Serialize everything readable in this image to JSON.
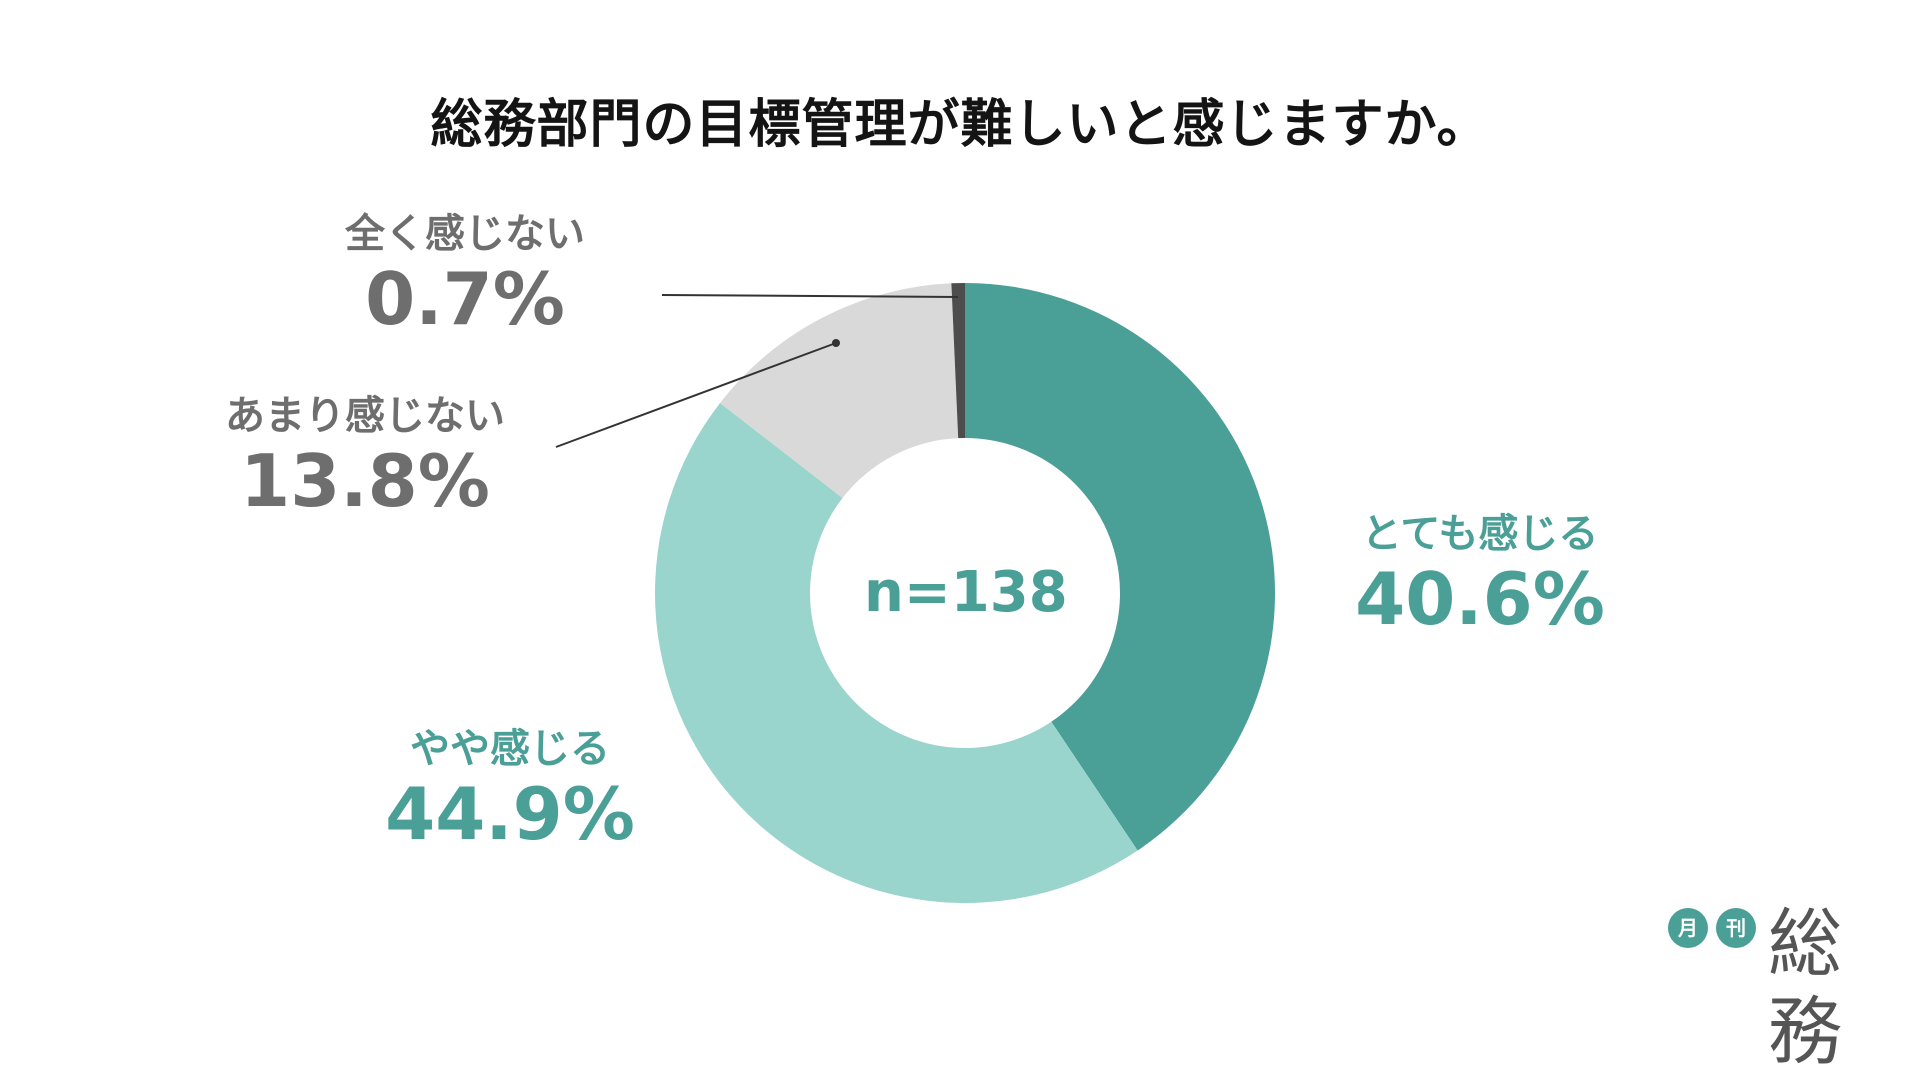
{
  "chart_data": {
    "type": "pie",
    "title": "総務部門の目標管理が難しいと感じますか。",
    "center_label": "n=138",
    "categories": [
      "とても感じる",
      "やや感じる",
      "あまり感じない",
      "全く感じない"
    ],
    "values": [
      40.6,
      44.9,
      13.8,
      0.7
    ],
    "value_labels": [
      "40.6%",
      "44.9%",
      "13.8%",
      "0.7%"
    ],
    "colors": [
      "#4a9f97",
      "#9ad5cd",
      "#d9d9d9",
      "#4d4d4d"
    ]
  },
  "logo": {
    "badge1": "月",
    "badge2": "刊",
    "word": "総務"
  }
}
